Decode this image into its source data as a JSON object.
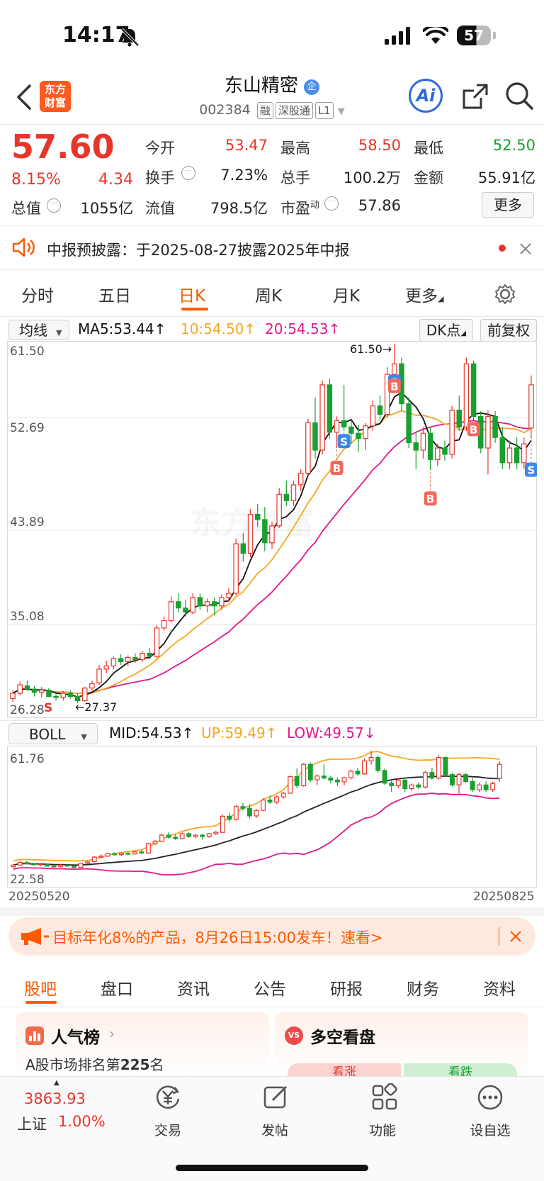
{
  "status_bar": {
    "time": "14:17",
    "battery": "57"
  },
  "header": {
    "title": "东山精密",
    "code": "002384",
    "tags": [
      "融",
      "深股通",
      "L1"
    ],
    "ai_label": "Ai",
    "logo_line1": "东方",
    "logo_line2": "财富"
  },
  "quote": {
    "price": "57.60",
    "change_pct": "8.15%",
    "change": "4.34",
    "stats": [
      {
        "label": "今开",
        "value": "53.47"
      },
      {
        "label": "最高",
        "value": "58.50"
      },
      {
        "label": "最低",
        "value": "52.50"
      },
      {
        "label": "换手",
        "value": "7.23%"
      },
      {
        "label": "总手",
        "value": "100.2万"
      },
      {
        "label": "金额",
        "value": "55.91亿"
      },
      {
        "label": "总值",
        "value": "1055亿"
      },
      {
        "label": "流值",
        "value": "798.5亿"
      },
      {
        "label": "市盈",
        "value": "57.86"
      }
    ],
    "pe_sup": "动",
    "more_button": "更多"
  },
  "notice": {
    "text": "中报预披露：于2025-08-27披露2025年中报"
  },
  "chart_tabs": [
    "分时",
    "五日",
    "日K",
    "周K",
    "月K",
    "更多"
  ],
  "active_chart_tab": "日K",
  "ma_bar": {
    "selector": "均线",
    "ma5": "MA5:53.44",
    "ma10": "10:54.50",
    "ma20": "20:54.53",
    "dk_button": "DK点",
    "adjust_button": "前复权"
  },
  "kline_axis": {
    "labels": [
      "61.50",
      "52.69",
      "43.89",
      "35.08",
      "26.28"
    ]
  },
  "annotations": {
    "high": "61.50→",
    "low": "←27.37",
    "buy": "B",
    "sell": "S"
  },
  "boll_bar": {
    "selector": "BOLL",
    "mid": "MID:54.53",
    "up": "UP:59.49",
    "low": "LOW:49.57"
  },
  "boll_axis": {
    "top": "61.76",
    "bottom": "22.58"
  },
  "dates": {
    "start": "20250520",
    "end": "20250825"
  },
  "promo": {
    "text": "目标年化8%的产品，8月26日15:00发车！速看>"
  },
  "bottom_tabs": [
    "股吧",
    "盘口",
    "资讯",
    "公告",
    "研报",
    "财务",
    "资料"
  ],
  "cards": {
    "popularity_title": "人气榜",
    "rank_prefix": "A股市场排名第",
    "rank": "225",
    "rank_suffix": "名",
    "vs_title": "多空看盘",
    "bull": "看涨",
    "bear": "看跌"
  },
  "nav": {
    "index_value": "3863.93",
    "index_name": "上证",
    "index_pct": "1.00%",
    "items": [
      "交易",
      "发帖",
      "功能",
      "设自选"
    ]
  },
  "colors": {
    "up": "#e8352c",
    "down": "#1aa030",
    "accent": "#ff5a00",
    "ma10": "#f5a623",
    "ma20": "#e0188c"
  },
  "chart_data": {
    "type": "candlestick",
    "ylim": [
      26.28,
      61.5
    ],
    "candles": [
      [
        27.8,
        28.6,
        27.5,
        28.3
      ],
      [
        28.3,
        29.4,
        28.1,
        29.1
      ],
      [
        29.0,
        29.5,
        28.5,
        28.7
      ],
      [
        28.7,
        29.0,
        28.0,
        28.4
      ],
      [
        28.4,
        28.9,
        27.9,
        28.6
      ],
      [
        28.6,
        28.8,
        27.9,
        28.0
      ],
      [
        28.0,
        28.3,
        27.6,
        27.9
      ],
      [
        27.9,
        28.5,
        27.6,
        28.3
      ],
      [
        28.3,
        28.6,
        27.8,
        28.0
      ],
      [
        28.0,
        28.3,
        27.37,
        27.6
      ],
      [
        27.6,
        28.9,
        27.5,
        28.8
      ],
      [
        28.8,
        29.5,
        28.5,
        29.2
      ],
      [
        29.3,
        31.0,
        29.1,
        30.6
      ],
      [
        30.6,
        31.4,
        30.2,
        30.9
      ],
      [
        30.9,
        31.8,
        30.6,
        31.6
      ],
      [
        31.6,
        32.0,
        31.0,
        31.3
      ],
      [
        31.3,
        31.9,
        30.9,
        31.7
      ],
      [
        31.7,
        32.1,
        31.2,
        31.5
      ],
      [
        31.5,
        32.3,
        31.3,
        32.1
      ],
      [
        32.1,
        32.6,
        31.5,
        31.8
      ],
      [
        31.8,
        34.8,
        31.6,
        34.5
      ],
      [
        34.5,
        35.6,
        34.2,
        35.2
      ],
      [
        35.2,
        37.5,
        35.0,
        37.0
      ],
      [
        37.0,
        37.8,
        36.0,
        36.4
      ],
      [
        36.4,
        37.2,
        35.6,
        36.0
      ],
      [
        36.0,
        37.8,
        35.8,
        37.4
      ],
      [
        37.4,
        37.8,
        36.2,
        36.6
      ],
      [
        36.6,
        37.3,
        36.0,
        37.0
      ],
      [
        37.0,
        37.4,
        35.7,
        36.6
      ],
      [
        36.6,
        37.7,
        36.2,
        37.4
      ],
      [
        37.4,
        38.3,
        37.0,
        37.8
      ],
      [
        37.8,
        43.0,
        37.6,
        42.5
      ],
      [
        42.5,
        43.5,
        40.8,
        41.6
      ],
      [
        41.6,
        45.8,
        41.2,
        45.3
      ],
      [
        45.3,
        46.3,
        44.1,
        44.8
      ],
      [
        44.8,
        46.0,
        41.8,
        42.6
      ],
      [
        42.6,
        44.6,
        42.0,
        44.2
      ],
      [
        44.2,
        47.8,
        44.0,
        47.2
      ],
      [
        47.2,
        48.5,
        46.1,
        46.6
      ],
      [
        46.6,
        48.5,
        46.1,
        48.1
      ],
      [
        48.1,
        49.6,
        47.5,
        49.2
      ],
      [
        49.2,
        54.4,
        49.0,
        54.0
      ],
      [
        54.0,
        56.4,
        50.6,
        51.4
      ],
      [
        51.4,
        58.0,
        51.0,
        57.6
      ],
      [
        57.6,
        58.2,
        52.5,
        53.1
      ],
      [
        53.1,
        54.6,
        51.6,
        54.2
      ],
      [
        54.2,
        57.6,
        53.2,
        53.6
      ],
      [
        53.6,
        54.3,
        52.0,
        53.0
      ],
      [
        53.0,
        53.8,
        51.2,
        52.5
      ],
      [
        52.5,
        54.0,
        51.4,
        53.7
      ],
      [
        53.7,
        56.1,
        53.2,
        55.6
      ],
      [
        55.6,
        56.6,
        54.2,
        54.8
      ],
      [
        54.8,
        59.3,
        54.5,
        58.6
      ],
      [
        58.6,
        61.5,
        57.5,
        59.6
      ],
      [
        59.6,
        60.2,
        55.1,
        55.8
      ],
      [
        55.8,
        56.4,
        51.6,
        52.1
      ],
      [
        52.1,
        53.1,
        49.6,
        51.4
      ],
      [
        51.4,
        53.6,
        50.6,
        53.0
      ],
      [
        53.0,
        53.6,
        49.5,
        50.5
      ],
      [
        50.5,
        52.0,
        49.9,
        51.6
      ],
      [
        51.6,
        52.3,
        50.4,
        51.0
      ],
      [
        51.0,
        55.6,
        50.6,
        55.2
      ],
      [
        55.2,
        56.6,
        53.2,
        53.6
      ],
      [
        53.6,
        60.2,
        53.2,
        59.6
      ],
      [
        59.6,
        59.9,
        54.2,
        54.6
      ],
      [
        54.6,
        55.1,
        51.1,
        51.6
      ],
      [
        51.6,
        55.2,
        49.1,
        54.6
      ],
      [
        54.6,
        55.1,
        52.1,
        52.6
      ],
      [
        52.6,
        53.6,
        49.6,
        50.2
      ],
      [
        50.2,
        52.3,
        49.6,
        51.6
      ],
      [
        51.6,
        52.6,
        49.6,
        50.2
      ],
      [
        50.2,
        52.6,
        49.6,
        52.0
      ],
      [
        53.5,
        58.5,
        52.5,
        57.6
      ]
    ]
  }
}
